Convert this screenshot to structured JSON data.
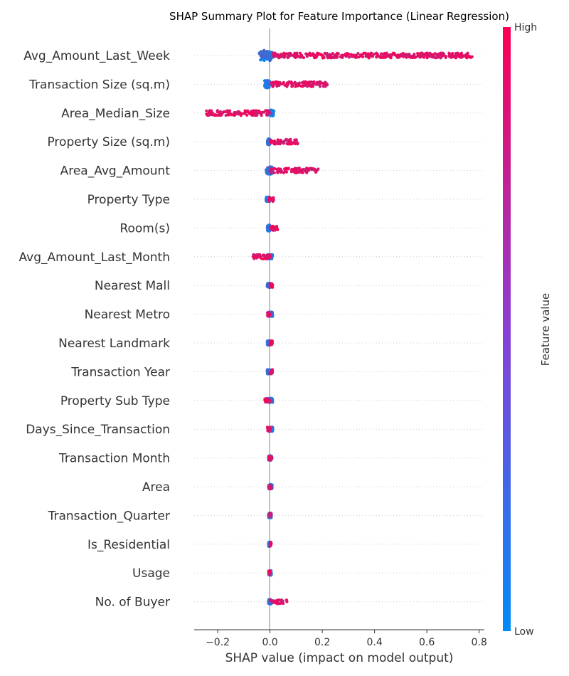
{
  "chart_data": {
    "type": "scatter",
    "subtype": "shap-beeswarm",
    "title": "SHAP Summary Plot for Feature Importance (Linear Regression)",
    "xlabel": "SHAP value (impact on model output)",
    "xlim": [
      -0.29,
      0.82
    ],
    "x_ticks": [
      -0.2,
      0.0,
      0.2,
      0.4,
      0.6,
      0.8
    ],
    "x_tick_labels": [
      "−0.2",
      "0.0",
      "0.2",
      "0.4",
      "0.6",
      "0.8"
    ],
    "colorbar": {
      "title": "Feature value",
      "high_label": "High",
      "low_label": "Low",
      "high_color": "#ff0052",
      "low_color": "#008bfb"
    },
    "features": [
      {
        "name": "Avg_Amount_Last_Week",
        "low_range": [
          -0.04,
          0.01
        ],
        "high_range": [
          0.01,
          0.775
        ],
        "spread": 7
      },
      {
        "name": "Transaction Size (sq.m)",
        "low_range": [
          -0.02,
          0.0
        ],
        "high_range": [
          0.0,
          0.22
        ],
        "spread": 5
      },
      {
        "name": "Area_Median_Size",
        "low_range": [
          -0.01,
          0.015
        ],
        "high_range": [
          -0.245,
          0.0
        ],
        "spread": 4
      },
      {
        "name": "Property Size (sq.m)",
        "low_range": [
          -0.01,
          0.0
        ],
        "high_range": [
          0.0,
          0.11
        ],
        "spread": 4
      },
      {
        "name": "Area_Avg_Amount",
        "low_range": [
          -0.015,
          0.01
        ],
        "high_range": [
          0.0,
          0.185
        ],
        "spread": 5
      },
      {
        "name": "Property Type",
        "low_range": [
          -0.015,
          0.0
        ],
        "high_range": [
          -0.005,
          0.015
        ],
        "spread": 3
      },
      {
        "name": "Room(s)",
        "low_range": [
          -0.01,
          0.0
        ],
        "high_range": [
          0.0,
          0.03
        ],
        "spread": 4
      },
      {
        "name": "Avg_Amount_Last_Month",
        "low_range": [
          -0.01,
          0.01
        ],
        "high_range": [
          -0.065,
          0.0
        ],
        "spread": 3
      },
      {
        "name": "Nearest Mall",
        "low_range": [
          -0.01,
          0.0
        ],
        "high_range": [
          0.0,
          0.01
        ],
        "spread": 3
      },
      {
        "name": "Nearest Metro",
        "low_range": [
          0.0,
          0.01
        ],
        "high_range": [
          -0.01,
          0.0
        ],
        "spread": 3
      },
      {
        "name": "Nearest Landmark",
        "low_range": [
          -0.01,
          0.0
        ],
        "high_range": [
          0.0,
          0.01
        ],
        "spread": 3
      },
      {
        "name": "Transaction Year",
        "low_range": [
          -0.01,
          0.0
        ],
        "high_range": [
          0.0,
          0.01
        ],
        "spread": 3
      },
      {
        "name": "Property Sub Type",
        "low_range": [
          -0.005,
          0.01
        ],
        "high_range": [
          -0.02,
          0.0
        ],
        "spread": 3
      },
      {
        "name": "Days_Since_Transaction",
        "low_range": [
          0.0,
          0.01
        ],
        "high_range": [
          -0.01,
          0.0
        ],
        "spread": 3
      },
      {
        "name": "Transaction Month",
        "low_range": [
          -0.005,
          0.005
        ],
        "high_range": [
          -0.005,
          0.008
        ],
        "spread": 3
      },
      {
        "name": "Area",
        "low_range": [
          -0.005,
          0.008
        ],
        "high_range": [
          -0.005,
          0.005
        ],
        "spread": 3
      },
      {
        "name": "Transaction_Quarter",
        "low_range": [
          -0.005,
          0.005
        ],
        "high_range": [
          -0.005,
          0.005
        ],
        "spread": 3
      },
      {
        "name": "Is_Residential",
        "low_range": [
          -0.005,
          0.0
        ],
        "high_range": [
          0.0,
          0.005
        ],
        "spread": 3
      },
      {
        "name": "Usage",
        "low_range": [
          -0.005,
          0.005
        ],
        "high_range": [
          -0.005,
          0.0
        ],
        "spread": 3
      },
      {
        "name": "No. of Buyer",
        "low_range": [
          -0.005,
          0.005
        ],
        "high_range": [
          0.0,
          0.065
        ],
        "spread": 3
      }
    ]
  }
}
